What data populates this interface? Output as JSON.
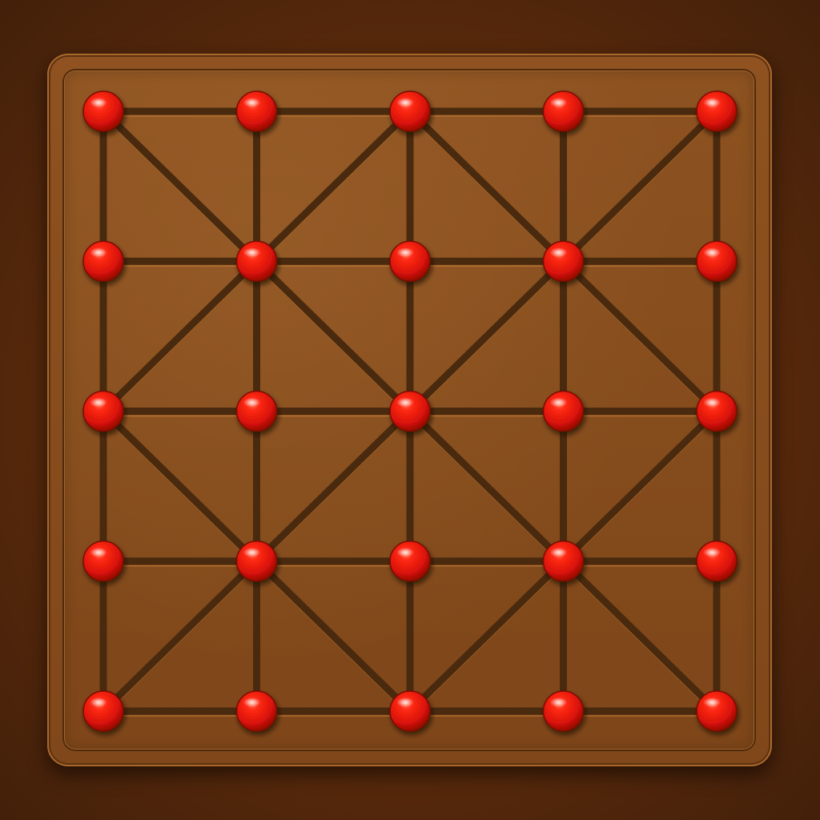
{
  "game": {
    "board": {
      "rows": 5,
      "cols": 5,
      "colors": {
        "background": "#5a2a0c",
        "board": "#8a4f1e",
        "line": "#4a2a0e",
        "piece": "#e01a10"
      }
    },
    "pieces": [
      {
        "row": 0,
        "col": 0,
        "color": "red"
      },
      {
        "row": 0,
        "col": 1,
        "color": "red"
      },
      {
        "row": 0,
        "col": 2,
        "color": "red"
      },
      {
        "row": 0,
        "col": 3,
        "color": "red"
      },
      {
        "row": 0,
        "col": 4,
        "color": "red"
      },
      {
        "row": 1,
        "col": 0,
        "color": "red"
      },
      {
        "row": 1,
        "col": 1,
        "color": "red"
      },
      {
        "row": 1,
        "col": 2,
        "color": "red"
      },
      {
        "row": 1,
        "col": 3,
        "color": "red"
      },
      {
        "row": 1,
        "col": 4,
        "color": "red"
      },
      {
        "row": 2,
        "col": 0,
        "color": "red"
      },
      {
        "row": 2,
        "col": 1,
        "color": "red"
      },
      {
        "row": 2,
        "col": 2,
        "color": "red"
      },
      {
        "row": 2,
        "col": 3,
        "color": "red"
      },
      {
        "row": 2,
        "col": 4,
        "color": "red"
      },
      {
        "row": 3,
        "col": 0,
        "color": "red"
      },
      {
        "row": 3,
        "col": 1,
        "color": "red"
      },
      {
        "row": 3,
        "col": 2,
        "color": "red"
      },
      {
        "row": 3,
        "col": 3,
        "color": "red"
      },
      {
        "row": 3,
        "col": 4,
        "color": "red"
      },
      {
        "row": 4,
        "col": 0,
        "color": "red"
      },
      {
        "row": 4,
        "col": 1,
        "color": "red"
      },
      {
        "row": 4,
        "col": 2,
        "color": "red"
      },
      {
        "row": 4,
        "col": 3,
        "color": "red"
      },
      {
        "row": 4,
        "col": 4,
        "color": "red"
      }
    ],
    "diagonals": [
      {
        "from": [
          0,
          0
        ],
        "to": [
          1,
          1
        ]
      },
      {
        "from": [
          1,
          1
        ],
        "to": [
          0,
          2
        ]
      },
      {
        "from": [
          0,
          2
        ],
        "to": [
          1,
          3
        ]
      },
      {
        "from": [
          1,
          3
        ],
        "to": [
          0,
          4
        ]
      },
      {
        "from": [
          1,
          1
        ],
        "to": [
          2,
          0
        ]
      },
      {
        "from": [
          1,
          1
        ],
        "to": [
          2,
          2
        ]
      },
      {
        "from": [
          2,
          2
        ],
        "to": [
          1,
          3
        ]
      },
      {
        "from": [
          1,
          3
        ],
        "to": [
          2,
          4
        ]
      },
      {
        "from": [
          2,
          0
        ],
        "to": [
          3,
          1
        ]
      },
      {
        "from": [
          3,
          1
        ],
        "to": [
          2,
          2
        ]
      },
      {
        "from": [
          2,
          2
        ],
        "to": [
          3,
          3
        ]
      },
      {
        "from": [
          3,
          3
        ],
        "to": [
          2,
          4
        ]
      },
      {
        "from": [
          3,
          1
        ],
        "to": [
          4,
          0
        ]
      },
      {
        "from": [
          3,
          1
        ],
        "to": [
          4,
          2
        ]
      },
      {
        "from": [
          4,
          2
        ],
        "to": [
          3,
          3
        ]
      },
      {
        "from": [
          3,
          3
        ],
        "to": [
          4,
          4
        ]
      }
    ]
  }
}
